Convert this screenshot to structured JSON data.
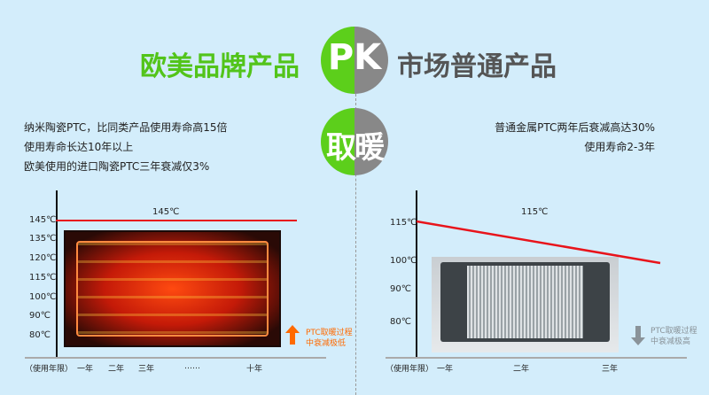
{
  "header": {
    "left_title": "欧美品牌产品",
    "pk": "PK",
    "right_title": "市场普通产品",
    "badge": "取暖"
  },
  "left": {
    "desc": [
      "纳米陶瓷PTC，比同类产品使用寿命高15倍",
      "使用寿命长达10年以上",
      "欧美使用的进口陶瓷PTC三年衰减仅3%"
    ],
    "line_label": "145℃",
    "y_ticks": [
      "145℃",
      "135℃",
      "120℃",
      "115℃",
      "100℃",
      "90℃",
      "80℃"
    ],
    "x_label": "（使用年限）",
    "x_ticks": [
      "一年",
      "二年",
      "三年",
      "……",
      "十年"
    ],
    "note": [
      "PTC取暖过程",
      "中衰减极低"
    ],
    "accent": "#ff6a00"
  },
  "right": {
    "desc": [
      "普通金属PTC两年后衰减高达30%",
      "使用寿命2-3年"
    ],
    "line_label": "115℃",
    "y_ticks": [
      "115℃",
      "100℃",
      "90℃",
      "80℃"
    ],
    "x_label": "（使用年限）",
    "x_ticks": [
      "一年",
      "二年",
      "三年"
    ],
    "note": [
      "PTC取暖过程",
      "中衰减极高"
    ],
    "accent": "#8a9399"
  },
  "colors": {
    "green": "#5ccf1b",
    "gray": "#888888",
    "red": "#e8141b",
    "bg": "#d3edfb"
  }
}
